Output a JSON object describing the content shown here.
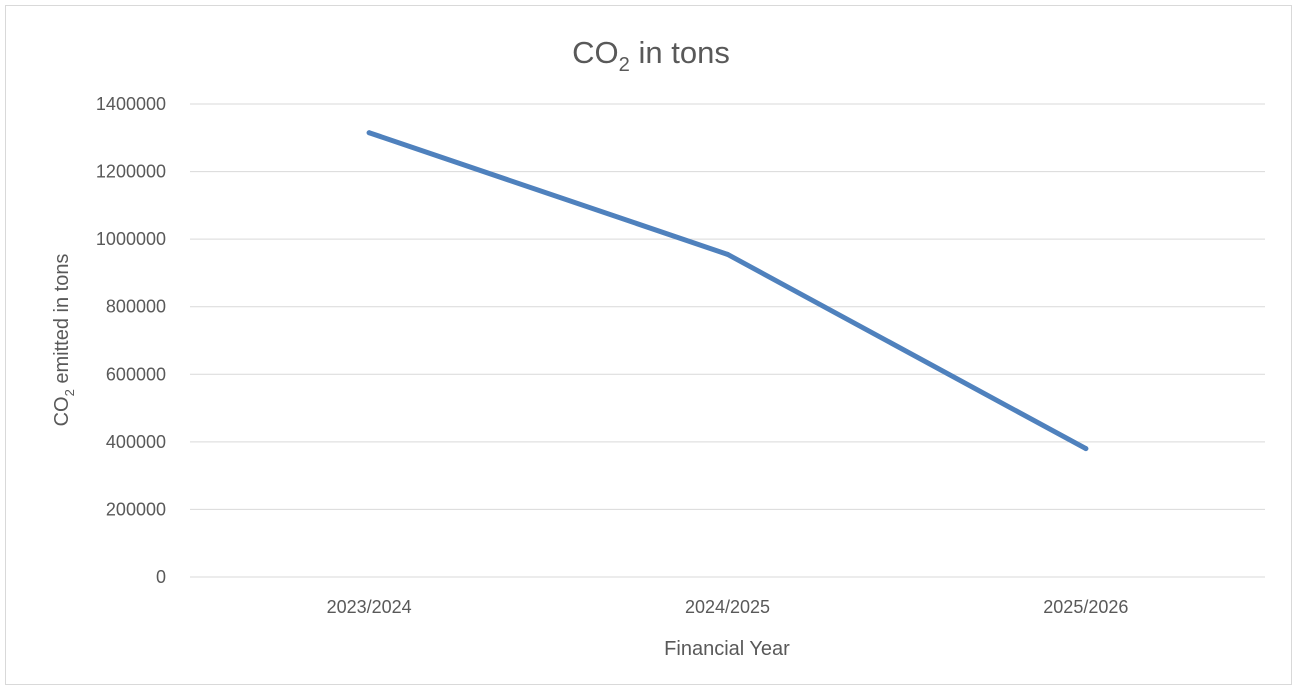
{
  "chart_data": {
    "type": "line",
    "title_base": "CO",
    "title_sub": "2",
    "title_rest": " in tons",
    "xlabel": "Financial Year",
    "ylabel_base": "CO",
    "ylabel_sub": "2",
    "ylabel_rest": " emitted in tons",
    "categories": [
      "2023/2024",
      "2024/2025",
      "2025/2026"
    ],
    "series": [
      {
        "values": [
          1315000,
          955000,
          380000
        ],
        "color": "#4f81bd"
      }
    ],
    "ylim": [
      0,
      1400000
    ],
    "yticks": [
      "0",
      "200000",
      "400000",
      "600000",
      "800000",
      "1000000",
      "1200000",
      "1400000"
    ],
    "grid": true,
    "legend": "none",
    "gridline_color": "#d9d9d9",
    "text_color": "#595959"
  }
}
